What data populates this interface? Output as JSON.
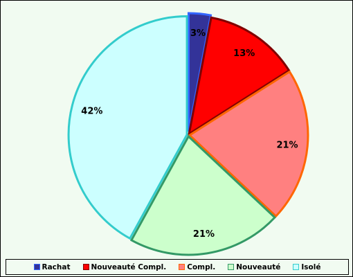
{
  "chart_data": {
    "type": "pie",
    "title": "",
    "slices": [
      {
        "name": "Rachat",
        "value": 3,
        "label": "3%",
        "fill": "#333399",
        "stroke": "#3366ff"
      },
      {
        "name": "Nouveauté Compl.",
        "value": 13,
        "label": "13%",
        "fill": "#ff0000",
        "stroke": "#800000"
      },
      {
        "name": "Compl.",
        "value": 21,
        "label": "21%",
        "fill": "#ff8080",
        "stroke": "#ff6600"
      },
      {
        "name": "Nouveauté",
        "value": 21,
        "label": "21%",
        "fill": "#ccffcc",
        "stroke": "#339966"
      },
      {
        "name": "Isolé",
        "value": 42,
        "label": "42%",
        "fill": "#ccffff",
        "stroke": "#33cccc"
      }
    ],
    "legend_position": "bottom",
    "background": "#f1fbf1"
  }
}
